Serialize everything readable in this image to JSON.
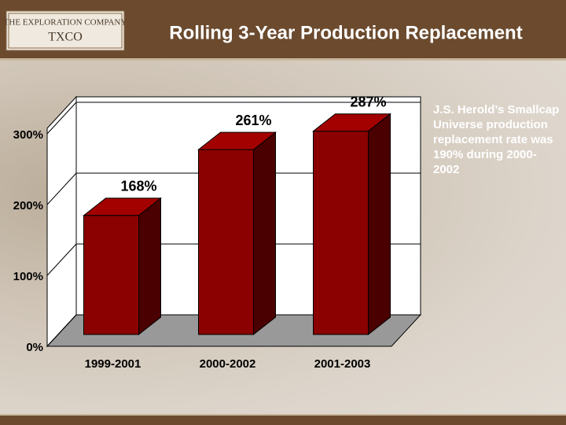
{
  "logo": {
    "top": "THE EXPLORATION COMPANY",
    "bottom": "TXCO"
  },
  "chart_data": {
    "type": "bar3d",
    "title": "Rolling 3-Year Production Replacement",
    "categories": [
      "1999-2001",
      "2000-2002",
      "2001-2003"
    ],
    "values": [
      168,
      261,
      287
    ],
    "value_labels": [
      "168%",
      "261%",
      "287%"
    ],
    "color": "#8b0000",
    "ylim": [
      0,
      300
    ],
    "yticks": [
      {
        "value": 0,
        "label": "0%"
      },
      {
        "value": 100,
        "label": "100%"
      },
      {
        "value": 200,
        "label": "200%"
      },
      {
        "value": 300,
        "label": "300%"
      }
    ],
    "grid": true,
    "annotation": "J.S. Herold’s Smallcap Universe production replacement rate was 190% during 2000-2002"
  }
}
